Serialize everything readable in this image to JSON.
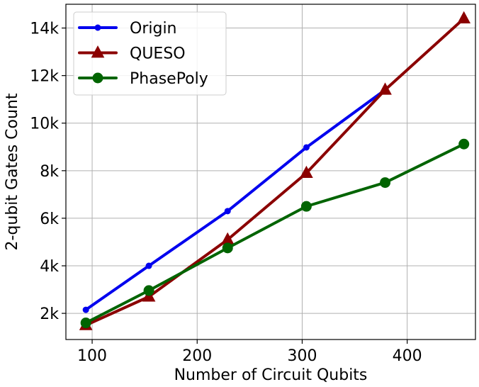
{
  "chart_data": {
    "type": "line",
    "xlabel": "Number of Circuit Qubits",
    "ylabel": "2-qubit Gates Count",
    "xlim": [
      75,
      465
    ],
    "ylim": [
      900,
      15000
    ],
    "x_ticks": [
      100,
      200,
      300,
      400
    ],
    "x_tick_labels": [
      "100",
      "200",
      "300",
      "400"
    ],
    "y_ticks": [
      2000,
      4000,
      6000,
      8000,
      10000,
      12000,
      14000
    ],
    "y_tick_labels": [
      "2k",
      "4k",
      "6k",
      "8k",
      "10k",
      "12k",
      "14k"
    ],
    "grid": true,
    "legend_position": "top-left",
    "series": [
      {
        "name": "Origin",
        "color": "#0000ee",
        "marker": "small-circle",
        "x": [
          94,
          154,
          229,
          304,
          379
        ],
        "values": [
          2150,
          4000,
          6300,
          8980,
          11400
        ]
      },
      {
        "name": "QUESO",
        "color": "#8b0000",
        "marker": "triangle",
        "x": [
          94,
          154,
          229,
          304,
          379,
          454
        ],
        "values": [
          1500,
          2700,
          5100,
          7900,
          11400,
          14400
        ]
      },
      {
        "name": "PhasePoly",
        "color": "#006400",
        "marker": "large-circle",
        "x": [
          94,
          154,
          229,
          304,
          379,
          454
        ],
        "values": [
          1600,
          2960,
          4750,
          6500,
          7500,
          9120
        ]
      }
    ]
  }
}
